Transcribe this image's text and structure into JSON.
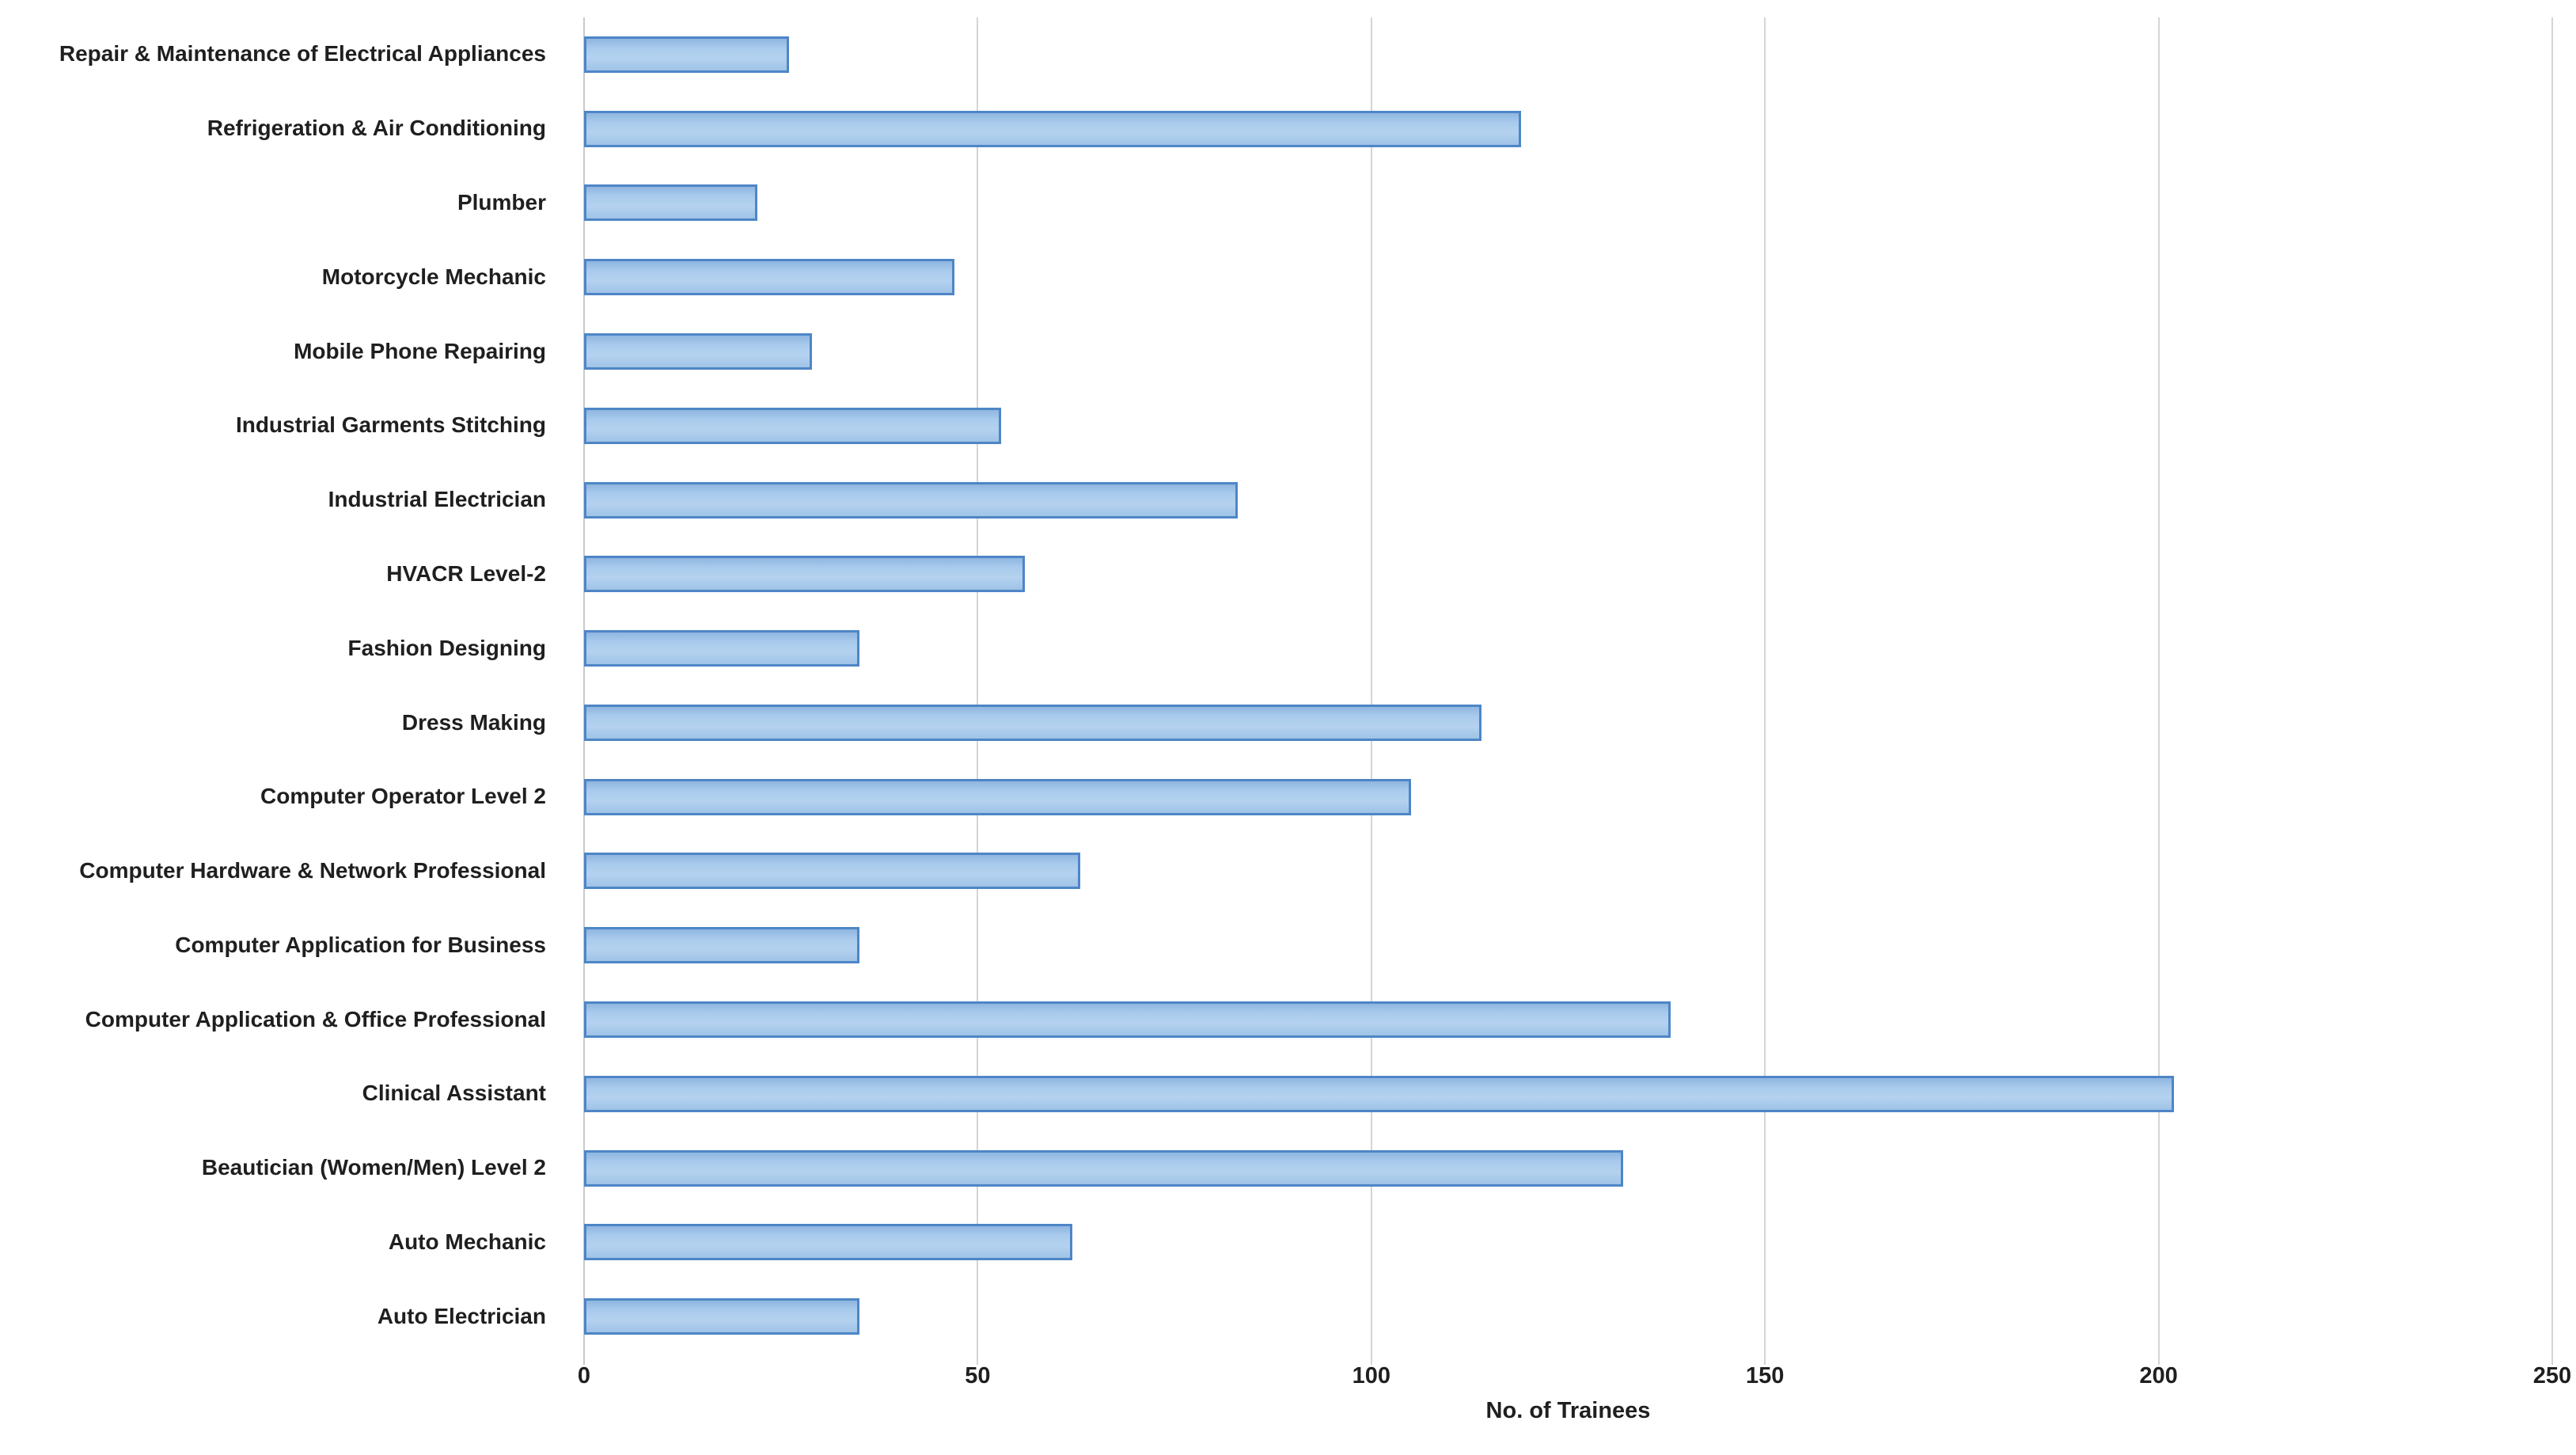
{
  "chart_data": {
    "type": "bar",
    "orientation": "horizontal",
    "title": "",
    "xlabel": "No. of Trainees",
    "ylabel": "",
    "xlim": [
      0,
      250
    ],
    "xticks": [
      0,
      50,
      100,
      150,
      200,
      250
    ],
    "grid": "vertical-gridlines-on",
    "legend": "none",
    "categories": [
      "Repair & Maintenance of Electrical Appliances",
      "Refrigeration & Air Conditioning",
      "Plumber",
      "Motorcycle Mechanic",
      "Mobile Phone Repairing",
      "Industrial Garments Stitching",
      "Industrial Electrician",
      "HVACR Level-2",
      "Fashion Designing",
      "Dress Making",
      "Computer Operator Level 2",
      "Computer Hardware & Network Professional",
      "Computer Application for Business",
      "Computer Application & Office Professional",
      "Clinical Assistant",
      "Beautician (Women/Men) Level 2",
      "Auto Mechanic",
      "Auto Electrician"
    ],
    "values": [
      26,
      119,
      22,
      47,
      29,
      53,
      83,
      56,
      35,
      114,
      105,
      63,
      35,
      138,
      202,
      132,
      62,
      35
    ]
  },
  "style": {
    "bar_fill_light": "#b4d2ef",
    "bar_fill_dark": "#8fb6e0",
    "bar_border": "#4e86c6",
    "gridline_color": "#d5d5d5",
    "text_color": "#1f1f1f",
    "background": "#ffffff"
  }
}
